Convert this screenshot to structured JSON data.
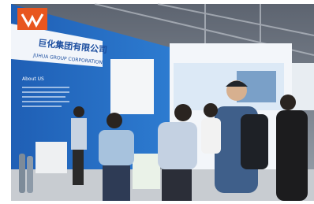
{
  "sign": {
    "company_cn": "巨化集团有限公司",
    "company_en": "JUHUA GROUP CORPORATION",
    "about": "About US"
  }
}
